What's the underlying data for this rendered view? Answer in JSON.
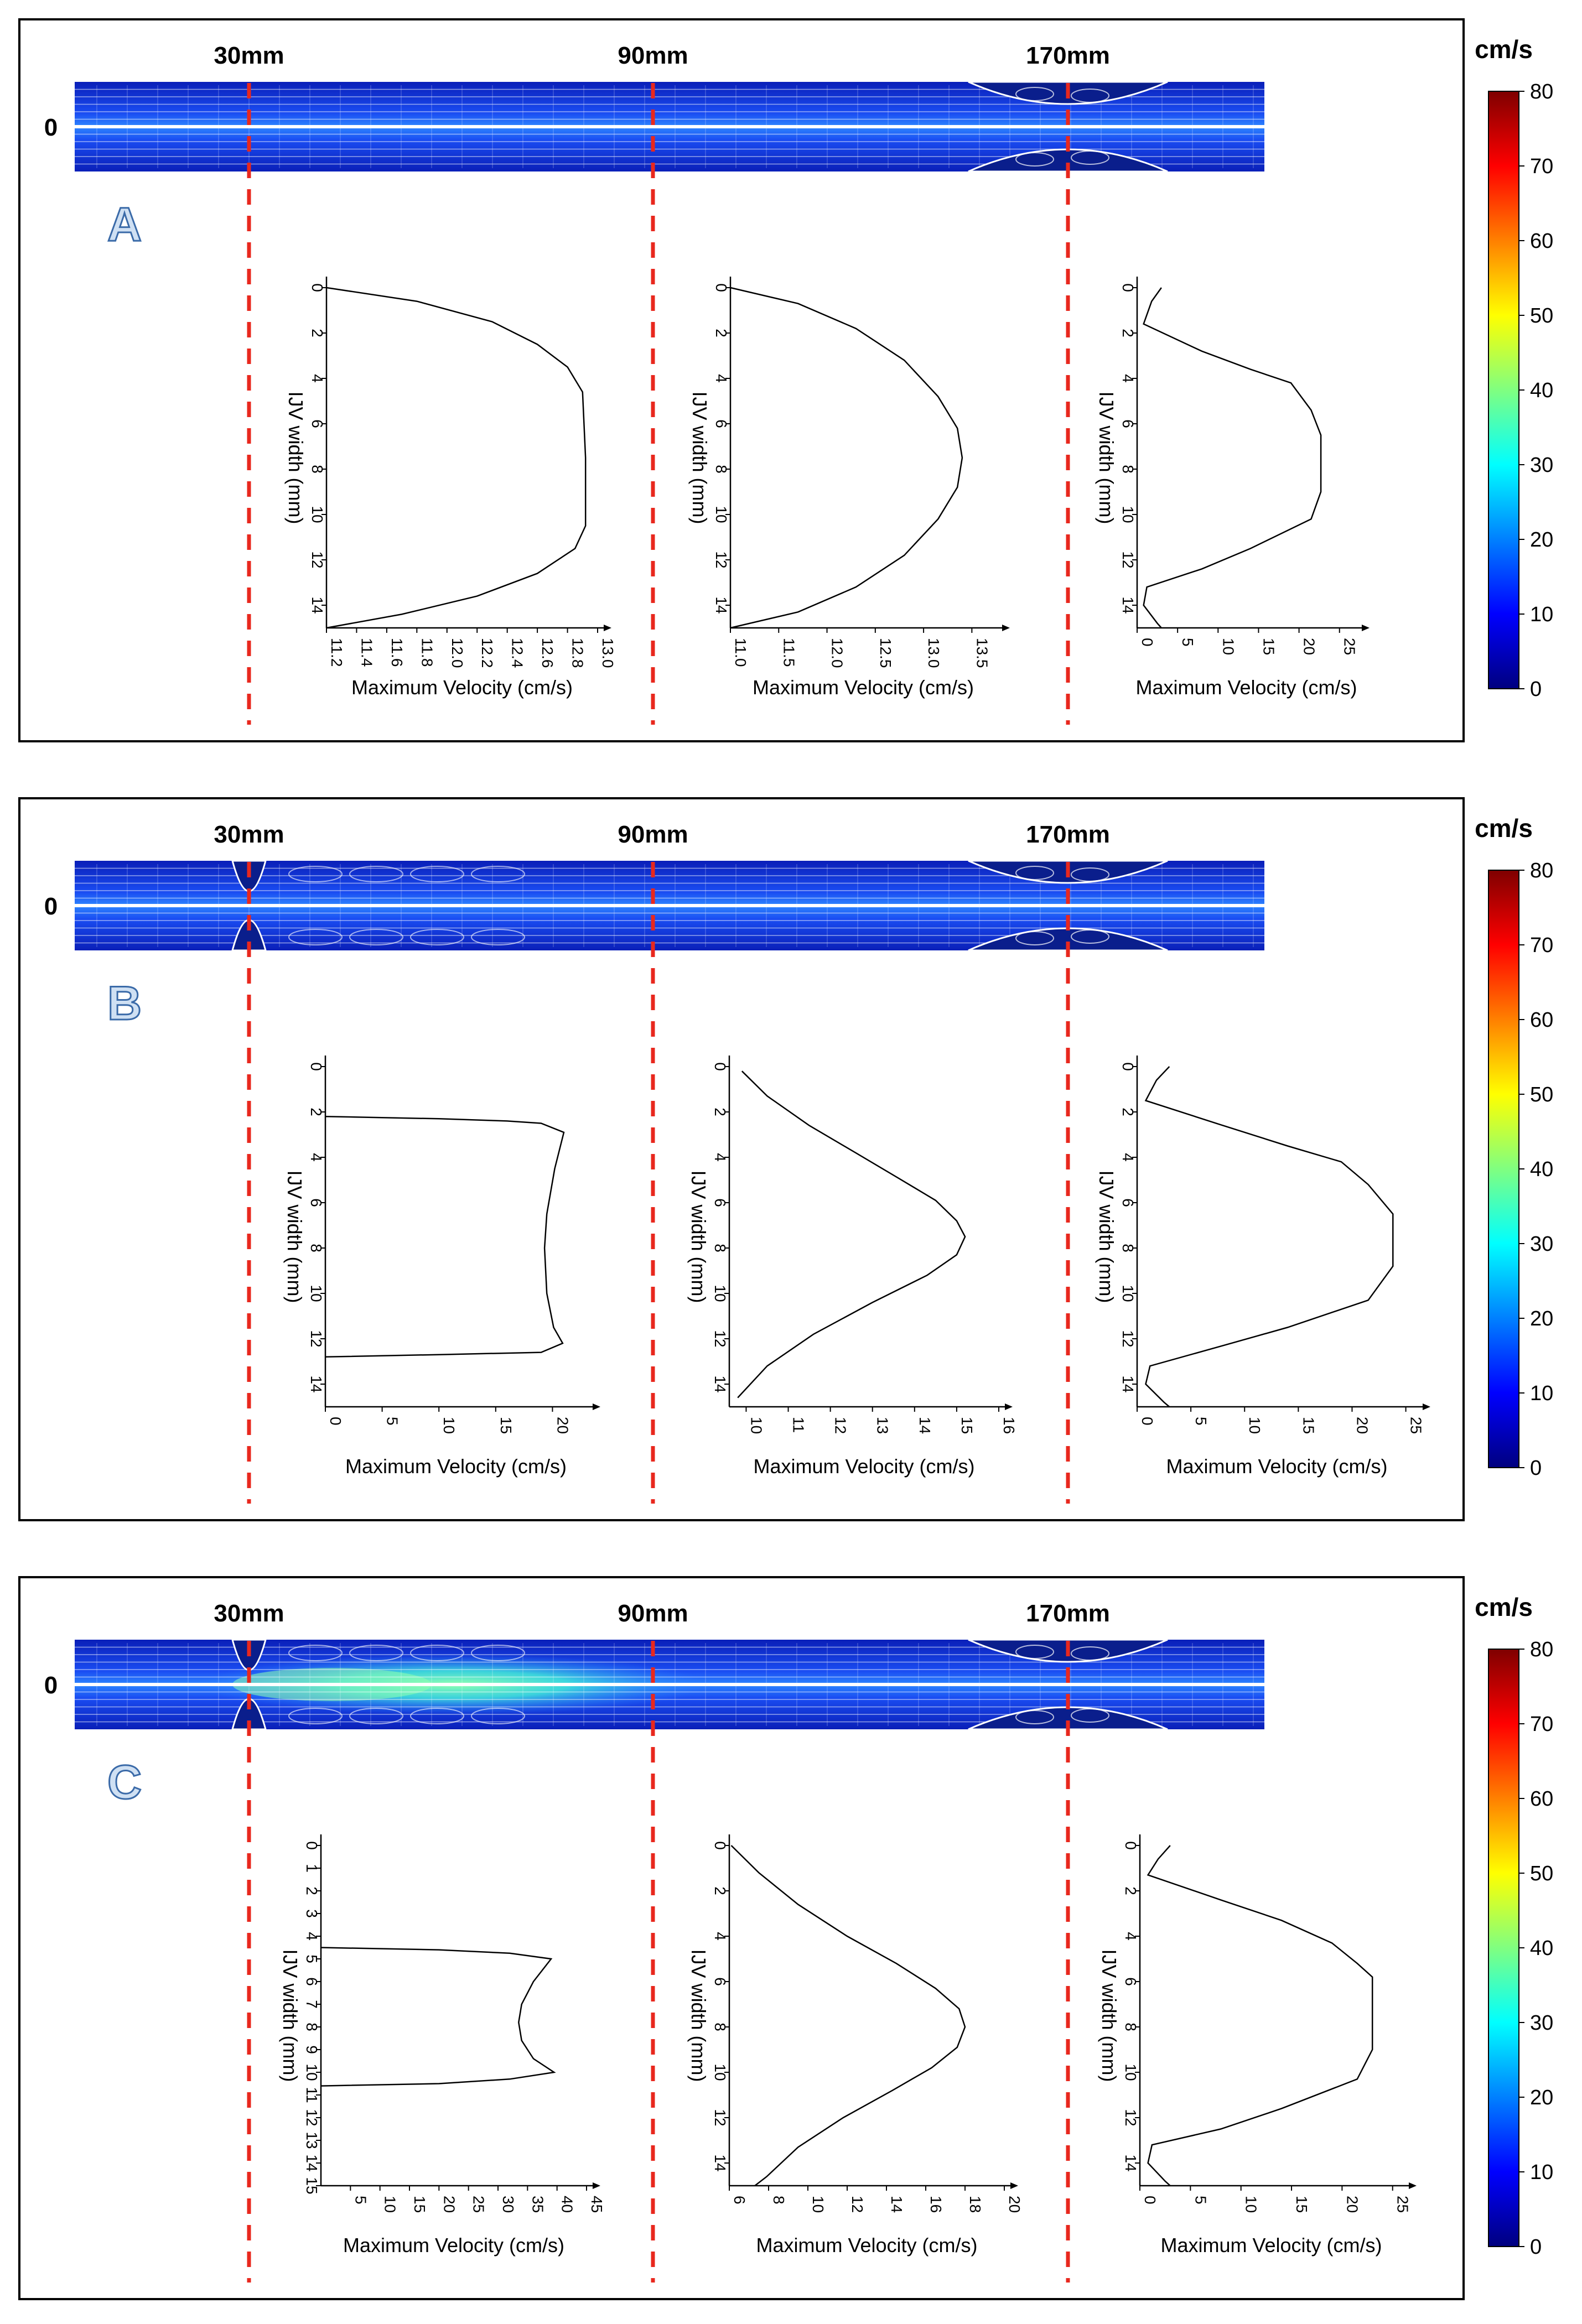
{
  "figure": {
    "zero_label": "0",
    "colorbar": {
      "unit": "cm/s",
      "ticks": [
        "0",
        "10",
        "20",
        "30",
        "40",
        "50",
        "60",
        "70",
        "80"
      ],
      "stops": [
        "#00007f",
        "#0000ff",
        "#0080ff",
        "#00ffff",
        "#80ff80",
        "#ffff00",
        "#ff8000",
        "#ff0000",
        "#7f0000"
      ]
    },
    "colors": {
      "flow_base": "#1a3cf0",
      "flow_jet": "#8fffb0",
      "cut_line": "#e8281e",
      "letter_fill": "#cfe0f3",
      "letter_stroke": "#3a6aa8"
    }
  },
  "chart_data": [
    {
      "panel": "A",
      "positions": [
        "30mm",
        "90mm",
        "170mm"
      ],
      "stenosis": [
        "170mm"
      ],
      "plots": [
        {
          "type": "line",
          "title": "30mm",
          "xlabel": "Maximum Velocity (cm/s)",
          "ylabel": "IJV width (mm)",
          "xlim": [
            11.2,
            13.0
          ],
          "ylim": [
            0,
            15
          ],
          "xticks": [
            "11.2",
            "11.4",
            "11.6",
            "11.8",
            "12.0",
            "12.2",
            "12.4",
            "12.6",
            "12.8",
            "13.0"
          ],
          "yticks": [
            "0",
            "2",
            "4",
            "6",
            "8",
            "10",
            "12",
            "14"
          ],
          "points": [
            [
              11.2,
              0
            ],
            [
              11.8,
              0.6
            ],
            [
              12.3,
              1.5
            ],
            [
              12.6,
              2.5
            ],
            [
              12.8,
              3.5
            ],
            [
              12.9,
              4.6
            ],
            [
              12.92,
              7.5
            ],
            [
              12.92,
              10.5
            ],
            [
              12.85,
              11.5
            ],
            [
              12.6,
              12.6
            ],
            [
              12.2,
              13.6
            ],
            [
              11.7,
              14.4
            ],
            [
              11.2,
              15
            ]
          ]
        },
        {
          "type": "line",
          "title": "90mm",
          "xlabel": "Maximum Velocity (cm/s)",
          "ylabel": "IJV width (mm)",
          "xlim": [
            11.0,
            13.75
          ],
          "ylim": [
            0,
            15
          ],
          "xticks": [
            "11.0",
            "11.5",
            "12.0",
            "12.5",
            "13.0",
            "13.5"
          ],
          "yticks": [
            "0",
            "2",
            "4",
            "6",
            "8",
            "10",
            "12",
            "14"
          ],
          "points": [
            [
              11.0,
              0
            ],
            [
              11.7,
              0.7
            ],
            [
              12.3,
              1.8
            ],
            [
              12.8,
              3.2
            ],
            [
              13.15,
              4.8
            ],
            [
              13.35,
              6.2
            ],
            [
              13.4,
              7.5
            ],
            [
              13.35,
              8.8
            ],
            [
              13.15,
              10.2
            ],
            [
              12.8,
              11.8
            ],
            [
              12.3,
              13.2
            ],
            [
              11.7,
              14.3
            ],
            [
              11.0,
              15
            ]
          ]
        },
        {
          "type": "line",
          "title": "170mm",
          "xlabel": "Maximum Velocity (cm/s)",
          "ylabel": "IJV width (mm)",
          "xlim": [
            0,
            27
          ],
          "ylim": [
            0,
            15
          ],
          "xticks": [
            "0",
            "5",
            "10",
            "15",
            "20",
            "25"
          ],
          "yticks": [
            "0",
            "2",
            "4",
            "6",
            "8",
            "10",
            "12",
            "14"
          ],
          "points": [
            [
              3,
              0
            ],
            [
              1.8,
              0.6
            ],
            [
              0.8,
              1.6
            ],
            [
              8,
              2.8
            ],
            [
              14,
              3.6
            ],
            [
              19,
              4.2
            ],
            [
              21.5,
              5.4
            ],
            [
              22.7,
              6.5
            ],
            [
              22.7,
              9.0
            ],
            [
              21.5,
              10.2
            ],
            [
              14,
              11.5
            ],
            [
              8,
              12.4
            ],
            [
              1.2,
              13.2
            ],
            [
              0.8,
              14.0
            ],
            [
              2.5,
              14.8
            ],
            [
              3,
              15
            ]
          ]
        }
      ]
    },
    {
      "panel": "B",
      "positions": [
        "30mm",
        "90mm",
        "170mm"
      ],
      "stenosis": [
        "30mm",
        "170mm"
      ],
      "plots": [
        {
          "type": "line",
          "title": "30mm",
          "xlabel": "Maximum Velocity (cm/s)",
          "ylabel": "IJV width (mm)",
          "xlim": [
            0,
            23
          ],
          "ylim": [
            0,
            15
          ],
          "xticks": [
            "0",
            "5",
            "10",
            "15",
            "20"
          ],
          "yticks": [
            "0",
            "2",
            "4",
            "6",
            "8",
            "10",
            "12",
            "14"
          ],
          "points": [
            [
              0,
              2.2
            ],
            [
              10,
              2.3
            ],
            [
              16,
              2.4
            ],
            [
              19,
              2.5
            ],
            [
              21,
              2.9
            ],
            [
              20.2,
              4.5
            ],
            [
              19.5,
              6.5
            ],
            [
              19.3,
              8.0
            ],
            [
              19.5,
              10.0
            ],
            [
              20.1,
              11.5
            ],
            [
              20.9,
              12.2
            ],
            [
              19,
              12.6
            ],
            [
              10,
              12.7
            ],
            [
              0,
              12.8
            ]
          ]
        },
        {
          "type": "line",
          "title": "90mm",
          "xlabel": "Maximum Velocity (cm/s)",
          "ylabel": "IJV width (mm)",
          "xlim": [
            9.6,
            16
          ],
          "ylim": [
            0,
            15
          ],
          "xticks": [
            "10",
            "11",
            "12",
            "13",
            "14",
            "15",
            "16"
          ],
          "yticks": [
            "0",
            "2",
            "4",
            "6",
            "8",
            "10",
            "12",
            "14"
          ],
          "points": [
            [
              9.9,
              0.2
            ],
            [
              10.5,
              1.3
            ],
            [
              11.5,
              2.6
            ],
            [
              12.6,
              3.8
            ],
            [
              13.6,
              4.9
            ],
            [
              14.5,
              5.9
            ],
            [
              15.0,
              6.8
            ],
            [
              15.2,
              7.5
            ],
            [
              15.0,
              8.3
            ],
            [
              14.3,
              9.2
            ],
            [
              13.0,
              10.4
            ],
            [
              11.6,
              11.8
            ],
            [
              10.5,
              13.2
            ],
            [
              9.8,
              14.6
            ]
          ]
        },
        {
          "type": "line",
          "title": "170mm",
          "xlabel": "Maximum Velocity (cm/s)",
          "ylabel": "IJV width (mm)",
          "xlim": [
            0,
            26
          ],
          "ylim": [
            0,
            15
          ],
          "xticks": [
            "0",
            "5",
            "10",
            "15",
            "20",
            "25"
          ],
          "yticks": [
            "0",
            "2",
            "4",
            "6",
            "8",
            "10",
            "12",
            "14"
          ],
          "points": [
            [
              3,
              0
            ],
            [
              1.8,
              0.6
            ],
            [
              0.8,
              1.5
            ],
            [
              8,
              2.6
            ],
            [
              14,
              3.5
            ],
            [
              19,
              4.2
            ],
            [
              21.5,
              5.2
            ],
            [
              23.8,
              6.5
            ],
            [
              23.8,
              8.8
            ],
            [
              21.5,
              10.3
            ],
            [
              14,
              11.5
            ],
            [
              8,
              12.3
            ],
            [
              1.2,
              13.2
            ],
            [
              0.8,
              14.0
            ],
            [
              2.5,
              14.8
            ],
            [
              3,
              15
            ]
          ]
        }
      ]
    },
    {
      "panel": "C",
      "positions": [
        "30mm",
        "90mm",
        "170mm"
      ],
      "stenosis": [
        "30mm",
        "170mm"
      ],
      "plots": [
        {
          "type": "line",
          "title": "30mm",
          "xlabel": "Maximum Velocity (cm/s)",
          "ylabel": "IJV width (mm)",
          "xlim": [
            0,
            45
          ],
          "ylim": [
            0,
            15
          ],
          "xticks": [
            "5",
            "10",
            "15",
            "20",
            "25",
            "30",
            "35",
            "40",
            "45"
          ],
          "yticks": [
            "0",
            "1",
            "2",
            "3",
            "4",
            "5",
            "6",
            "7",
            "8",
            "9",
            "10",
            "11",
            "12",
            "13",
            "14",
            "15"
          ],
          "points": [
            [
              0,
              4.5
            ],
            [
              20,
              4.6
            ],
            [
              32,
              4.75
            ],
            [
              39,
              5.0
            ],
            [
              36,
              6.0
            ],
            [
              34,
              7.0
            ],
            [
              33.5,
              7.8
            ],
            [
              34,
              8.6
            ],
            [
              36,
              9.4
            ],
            [
              39.5,
              10.0
            ],
            [
              32,
              10.3
            ],
            [
              20,
              10.5
            ],
            [
              0,
              10.6
            ]
          ]
        },
        {
          "type": "line",
          "title": "90mm",
          "xlabel": "Maximum Velocity (cm/s)",
          "ylabel": "IJV width (mm)",
          "xlim": [
            6,
            20
          ],
          "ylim": [
            0,
            15
          ],
          "xticks": [
            "6",
            "8",
            "10",
            "12",
            "14",
            "16",
            "18",
            "20"
          ],
          "yticks": [
            "0",
            "2",
            "4",
            "6",
            "8",
            "10",
            "12",
            "14"
          ],
          "points": [
            [
              6.1,
              0
            ],
            [
              7.5,
              1.2
            ],
            [
              9.5,
              2.6
            ],
            [
              12,
              4.0
            ],
            [
              14.5,
              5.2
            ],
            [
              16.5,
              6.3
            ],
            [
              17.7,
              7.2
            ],
            [
              18,
              8.0
            ],
            [
              17.6,
              8.9
            ],
            [
              16.3,
              9.8
            ],
            [
              14.3,
              10.8
            ],
            [
              11.8,
              12.0
            ],
            [
              9.5,
              13.3
            ],
            [
              7.9,
              14.6
            ],
            [
              7.3,
              15
            ]
          ]
        },
        {
          "type": "line",
          "title": "170mm",
          "xlabel": "Maximum Velocity (cm/s)",
          "ylabel": "IJV width (mm)",
          "xlim": [
            0,
            26
          ],
          "ylim": [
            0,
            15
          ],
          "xticks": [
            "0",
            "5",
            "10",
            "15",
            "20",
            "25"
          ],
          "yticks": [
            "0",
            "2",
            "4",
            "6",
            "8",
            "10",
            "12",
            "14"
          ],
          "points": [
            [
              3,
              0
            ],
            [
              1.8,
              0.6
            ],
            [
              0.8,
              1.3
            ],
            [
              8,
              2.4
            ],
            [
              14,
              3.3
            ],
            [
              19,
              4.3
            ],
            [
              21.5,
              5.2
            ],
            [
              23,
              5.8
            ],
            [
              23,
              9.0
            ],
            [
              21.5,
              10.3
            ],
            [
              14,
              11.6
            ],
            [
              8,
              12.5
            ],
            [
              1.2,
              13.2
            ],
            [
              0.8,
              14.0
            ],
            [
              2.5,
              14.8
            ],
            [
              3,
              15
            ]
          ]
        }
      ]
    }
  ]
}
